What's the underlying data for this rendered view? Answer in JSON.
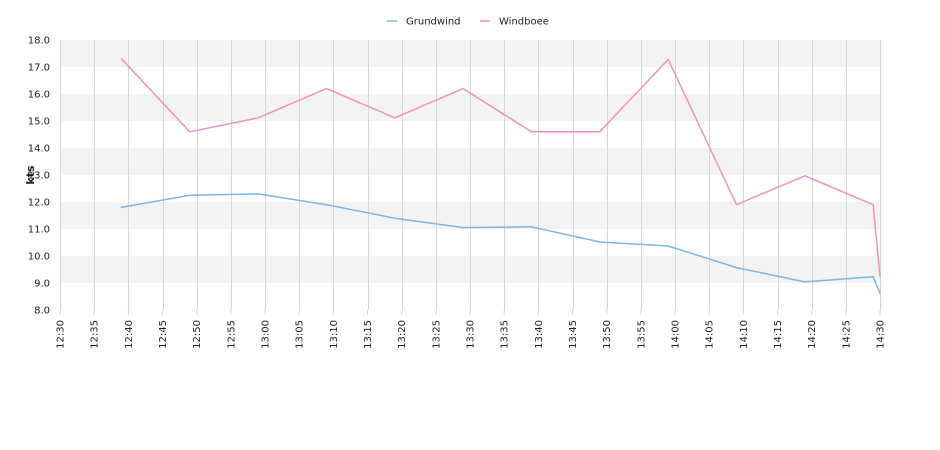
{
  "chart_data": {
    "type": "line",
    "ylabel": "kts",
    "xlabel": "",
    "title": "",
    "ylim": [
      8.0,
      18.0
    ],
    "y_ticks": [
      "8.0",
      "9.0",
      "10.0",
      "11.0",
      "12.0",
      "13.0",
      "14.0",
      "15.0",
      "16.0",
      "17.0",
      "18.0"
    ],
    "x_ticks": [
      "12:30",
      "12:35",
      "12:40",
      "12:45",
      "12:50",
      "12:55",
      "13:00",
      "13:05",
      "13:10",
      "13:15",
      "13:20",
      "13:25",
      "13:30",
      "13:35",
      "13:40",
      "13:45",
      "13:50",
      "13:55",
      "14:00",
      "14:05",
      "14:10",
      "14:15",
      "14:20",
      "14:25",
      "14:30"
    ],
    "xlim": [
      "12:30",
      "14:30"
    ],
    "grid": true,
    "banded_background": true,
    "legend_position": "top-center",
    "series": [
      {
        "name": "Grundwind",
        "color": "#7cb5ec",
        "x": [
          "12:39",
          "12:49",
          "12:59",
          "13:09",
          "13:19",
          "13:29",
          "13:39",
          "13:49",
          "13:59",
          "14:09",
          "14:19",
          "14:29",
          "14:30"
        ],
        "values": [
          11.8,
          12.25,
          12.3,
          11.9,
          11.4,
          11.05,
          11.08,
          10.52,
          10.37,
          9.57,
          9.04,
          9.23,
          8.62
        ]
      },
      {
        "name": "Windboee",
        "color": "#f191c0",
        "x": [
          "12:39",
          "12:49",
          "12:59",
          "13:09",
          "13:19",
          "13:29",
          "13:39",
          "13:49",
          "13:59",
          "14:09",
          "14:19",
          "14:29",
          "14:30"
        ],
        "values": [
          17.3,
          14.6,
          15.12,
          16.2,
          15.12,
          16.2,
          14.6,
          14.6,
          17.28,
          11.9,
          12.97,
          11.9,
          9.24
        ]
      }
    ]
  }
}
